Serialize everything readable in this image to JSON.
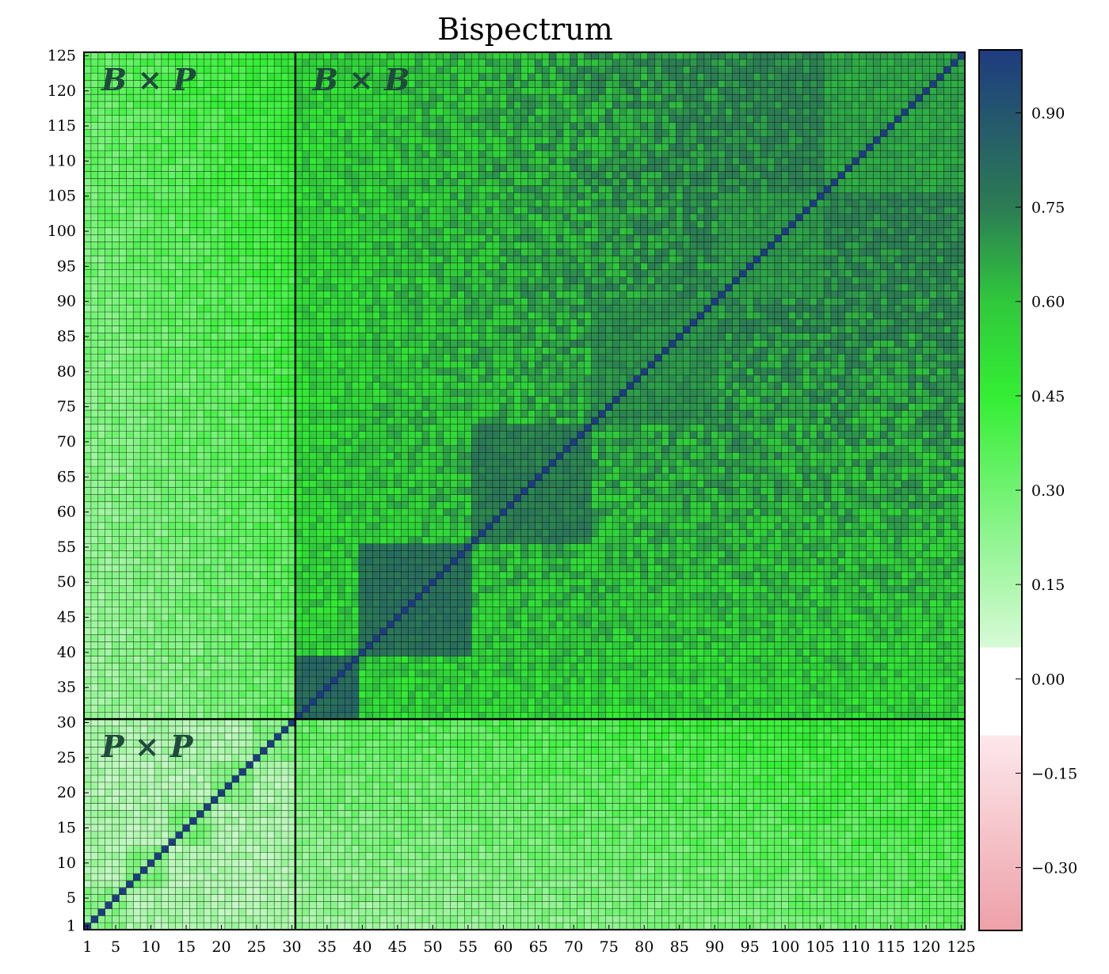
{
  "chart_data": {
    "type": "heatmap",
    "title": "Bispectrum",
    "n": 125,
    "boundary_index": 30,
    "x_ticks": [
      1,
      5,
      10,
      15,
      20,
      25,
      30,
      35,
      40,
      45,
      50,
      55,
      60,
      65,
      70,
      75,
      80,
      85,
      90,
      95,
      100,
      105,
      110,
      115,
      120,
      125
    ],
    "y_ticks": [
      1,
      5,
      10,
      15,
      20,
      25,
      30,
      35,
      40,
      45,
      50,
      55,
      60,
      65,
      70,
      75,
      80,
      85,
      90,
      95,
      100,
      105,
      110,
      115,
      120,
      125
    ],
    "region_labels": [
      {
        "text": "B × P",
        "region": "top-left"
      },
      {
        "text": "B × B",
        "region": "top-right"
      },
      {
        "text": "P × P",
        "region": "bottom-left"
      }
    ],
    "colorbar": {
      "range": [
        -0.4,
        1.0
      ],
      "ticks": [
        0.9,
        0.75,
        0.6,
        0.45,
        0.3,
        0.15,
        0.0,
        -0.15,
        -0.3
      ],
      "tick_labels": [
        "0.90",
        "0.75",
        "0.60",
        "0.45",
        "0.30",
        "0.15",
        "0.00",
        "−0.15",
        "−0.30"
      ]
    },
    "diagonal_value": 1.0,
    "blocks_P": [
      [
        1,
        6
      ],
      [
        7,
        12
      ],
      [
        13,
        18
      ],
      [
        19,
        24
      ],
      [
        25,
        30
      ]
    ],
    "blocks_B": [
      [
        31,
        39
      ],
      [
        40,
        55
      ],
      [
        56,
        72
      ],
      [
        73,
        90
      ],
      [
        91,
        105
      ],
      [
        106,
        125
      ]
    ],
    "within_block_correlation_B": [
      0.85,
      0.82,
      0.78,
      0.74,
      0.72,
      0.7
    ],
    "cross_block_correlation_range_B": [
      0.45,
      0.75
    ],
    "correlation_range_BxP": [
      0.05,
      0.55
    ],
    "correlation_range_PxP": [
      0.05,
      0.35
    ],
    "grid": true
  }
}
